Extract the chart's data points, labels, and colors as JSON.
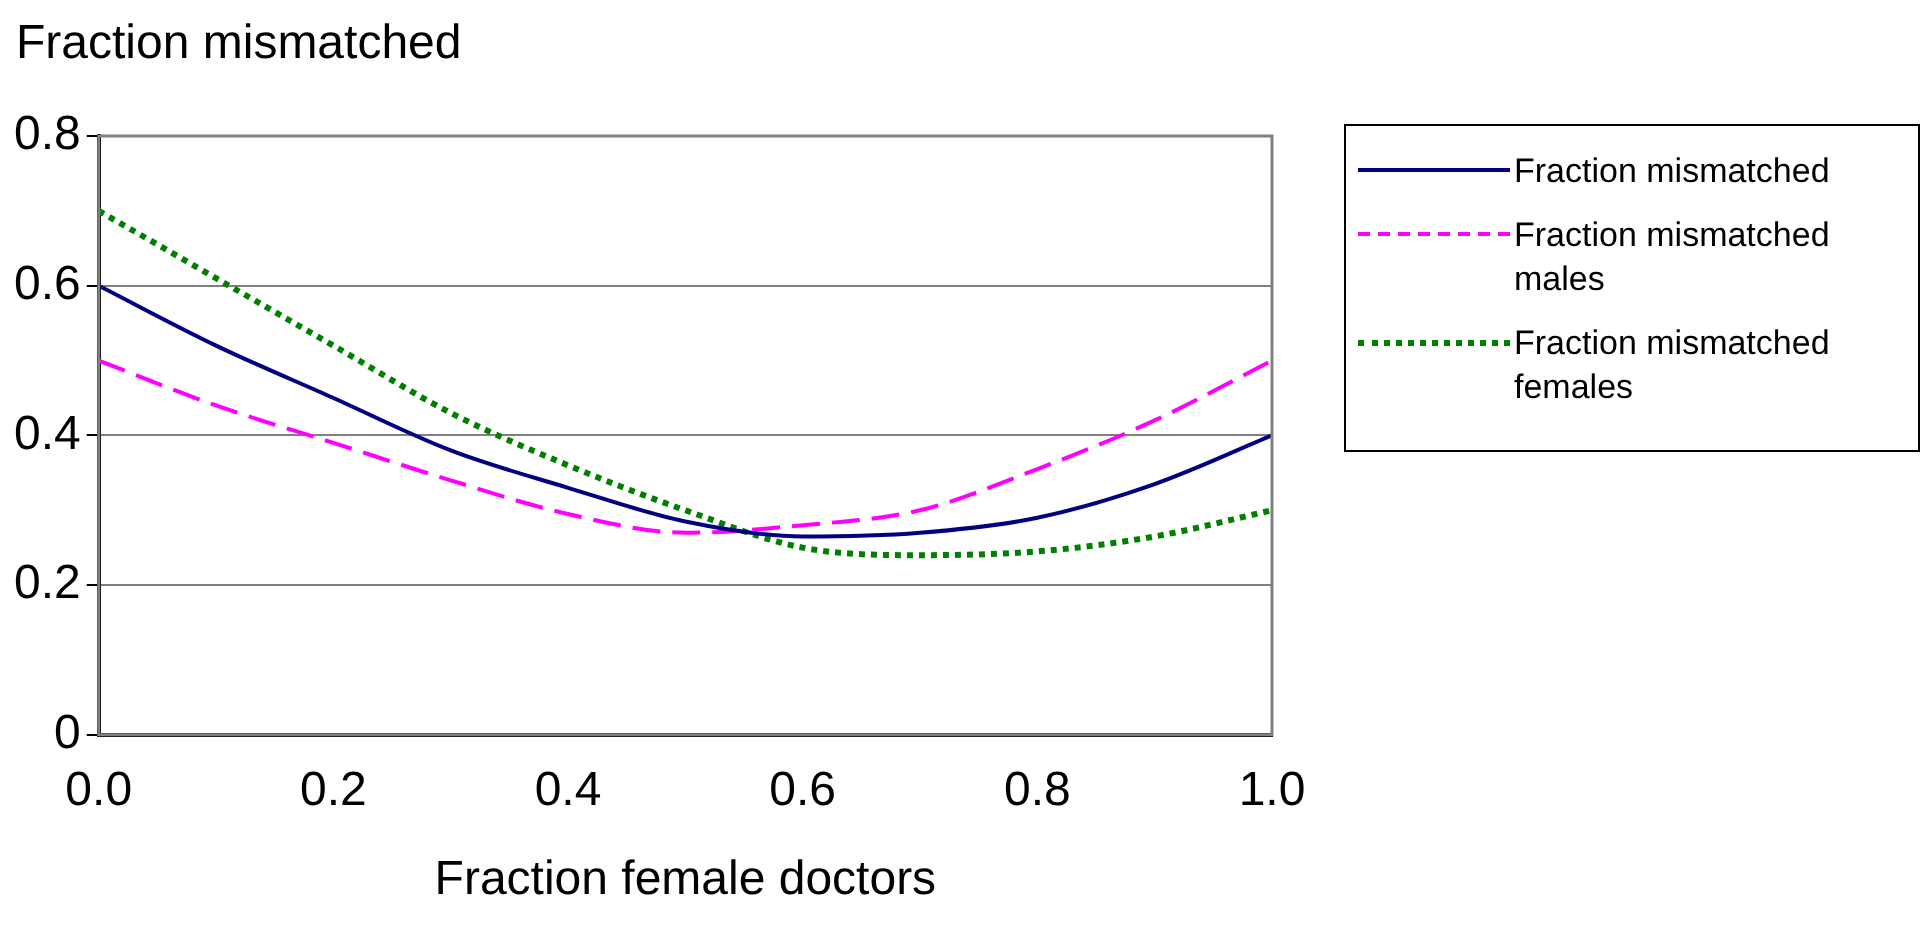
{
  "chart_data": {
    "type": "line",
    "ylabel": "Fraction mismatched",
    "xlabel": "Fraction female doctors",
    "x": [
      0,
      0.1,
      0.2,
      0.3,
      0.4,
      0.5,
      0.6,
      0.7,
      0.8,
      0.9,
      1.0
    ],
    "series": [
      {
        "name": "Fraction mismatched",
        "color": "#000080",
        "line_style": "solid",
        "values": [
          0.6,
          0.52,
          0.45,
          0.38,
          0.33,
          0.285,
          0.265,
          0.27,
          0.29,
          0.335,
          0.4
        ]
      },
      {
        "name": "Fraction mismatched males",
        "color": "#ff00ff",
        "line_style": "dashed",
        "values": [
          0.5,
          0.44,
          0.39,
          0.34,
          0.295,
          0.27,
          0.28,
          0.3,
          0.355,
          0.42,
          0.5
        ]
      },
      {
        "name": "Fraction mismatched females",
        "color": "#008000",
        "line_style": "dotted",
        "values": [
          0.7,
          0.61,
          0.52,
          0.43,
          0.36,
          0.3,
          0.25,
          0.24,
          0.245,
          0.265,
          0.3
        ]
      }
    ],
    "xlim": [
      0,
      1.0
    ],
    "xticks": [
      {
        "value": 0,
        "label": "0.0"
      },
      {
        "value": 0.2,
        "label": "0.2"
      },
      {
        "value": 0.4,
        "label": "0.4"
      },
      {
        "value": 0.6,
        "label": "0.6"
      },
      {
        "value": 0.8,
        "label": "0.8"
      },
      {
        "value": 1.0,
        "label": "1.0"
      }
    ],
    "ylim": [
      0,
      0.8
    ],
    "yticks": [
      0,
      0.2,
      0.4,
      0.6,
      0.8
    ],
    "grid": "y",
    "legend": "right",
    "marker": "none"
  }
}
